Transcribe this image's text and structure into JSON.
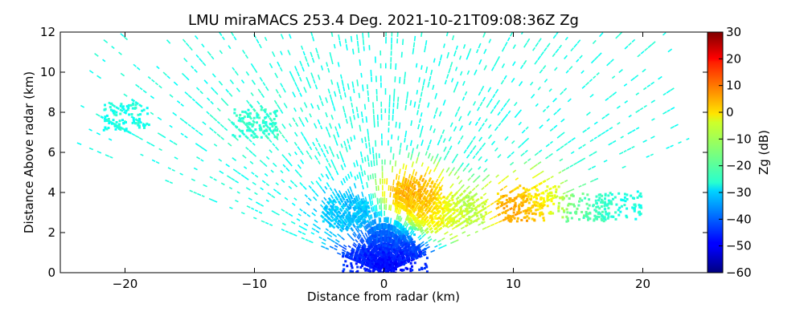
{
  "chart_data": {
    "type": "heatmap",
    "title": "LMU miraMACS 253.4 Deg. 2021-10-21T09:08:36Z  Zg",
    "xlabel": "Distance from radar (km)",
    "ylabel": "Distance Above radar  (km)",
    "xlim": [
      -25,
      25
    ],
    "ylim": [
      0,
      12
    ],
    "xticks": [
      -20,
      -10,
      0,
      10,
      20
    ],
    "yticks": [
      0,
      2,
      4,
      6,
      8,
      10,
      12
    ],
    "grid": false,
    "colorbar": {
      "label": "Zg (dB)",
      "colormap": "jet",
      "range": [
        -60,
        30
      ],
      "ticks": [
        30,
        20,
        10,
        0,
        -10,
        -20,
        -30,
        -40,
        -50,
        -60
      ]
    },
    "scan": {
      "max_range_km": 25,
      "min_elevation_deg": 17
    },
    "features": [
      {
        "x": 0.0,
        "y": 0.5,
        "zg": -52
      },
      {
        "x": -1.5,
        "y": 0.4,
        "zg": -45
      },
      {
        "x": 1.5,
        "y": 0.7,
        "zg": -47
      },
      {
        "x": 0.5,
        "y": 1.6,
        "zg": -40
      },
      {
        "x": 2.5,
        "y": 3.9,
        "zg": 5
      },
      {
        "x": 3.5,
        "y": 2.9,
        "zg": 0
      },
      {
        "x": 6.0,
        "y": 3.2,
        "zg": -10
      },
      {
        "x": 10.5,
        "y": 3.3,
        "zg": 8
      },
      {
        "x": 12.0,
        "y": 3.7,
        "zg": -5
      },
      {
        "x": 15.5,
        "y": 3.3,
        "zg": -18
      },
      {
        "x": 18.0,
        "y": 3.4,
        "zg": -24
      },
      {
        "x": -10.0,
        "y": 7.5,
        "zg": -22
      },
      {
        "x": -20.0,
        "y": 7.8,
        "zg": -24
      },
      {
        "x": -3.0,
        "y": 3.0,
        "zg": -32
      }
    ]
  }
}
